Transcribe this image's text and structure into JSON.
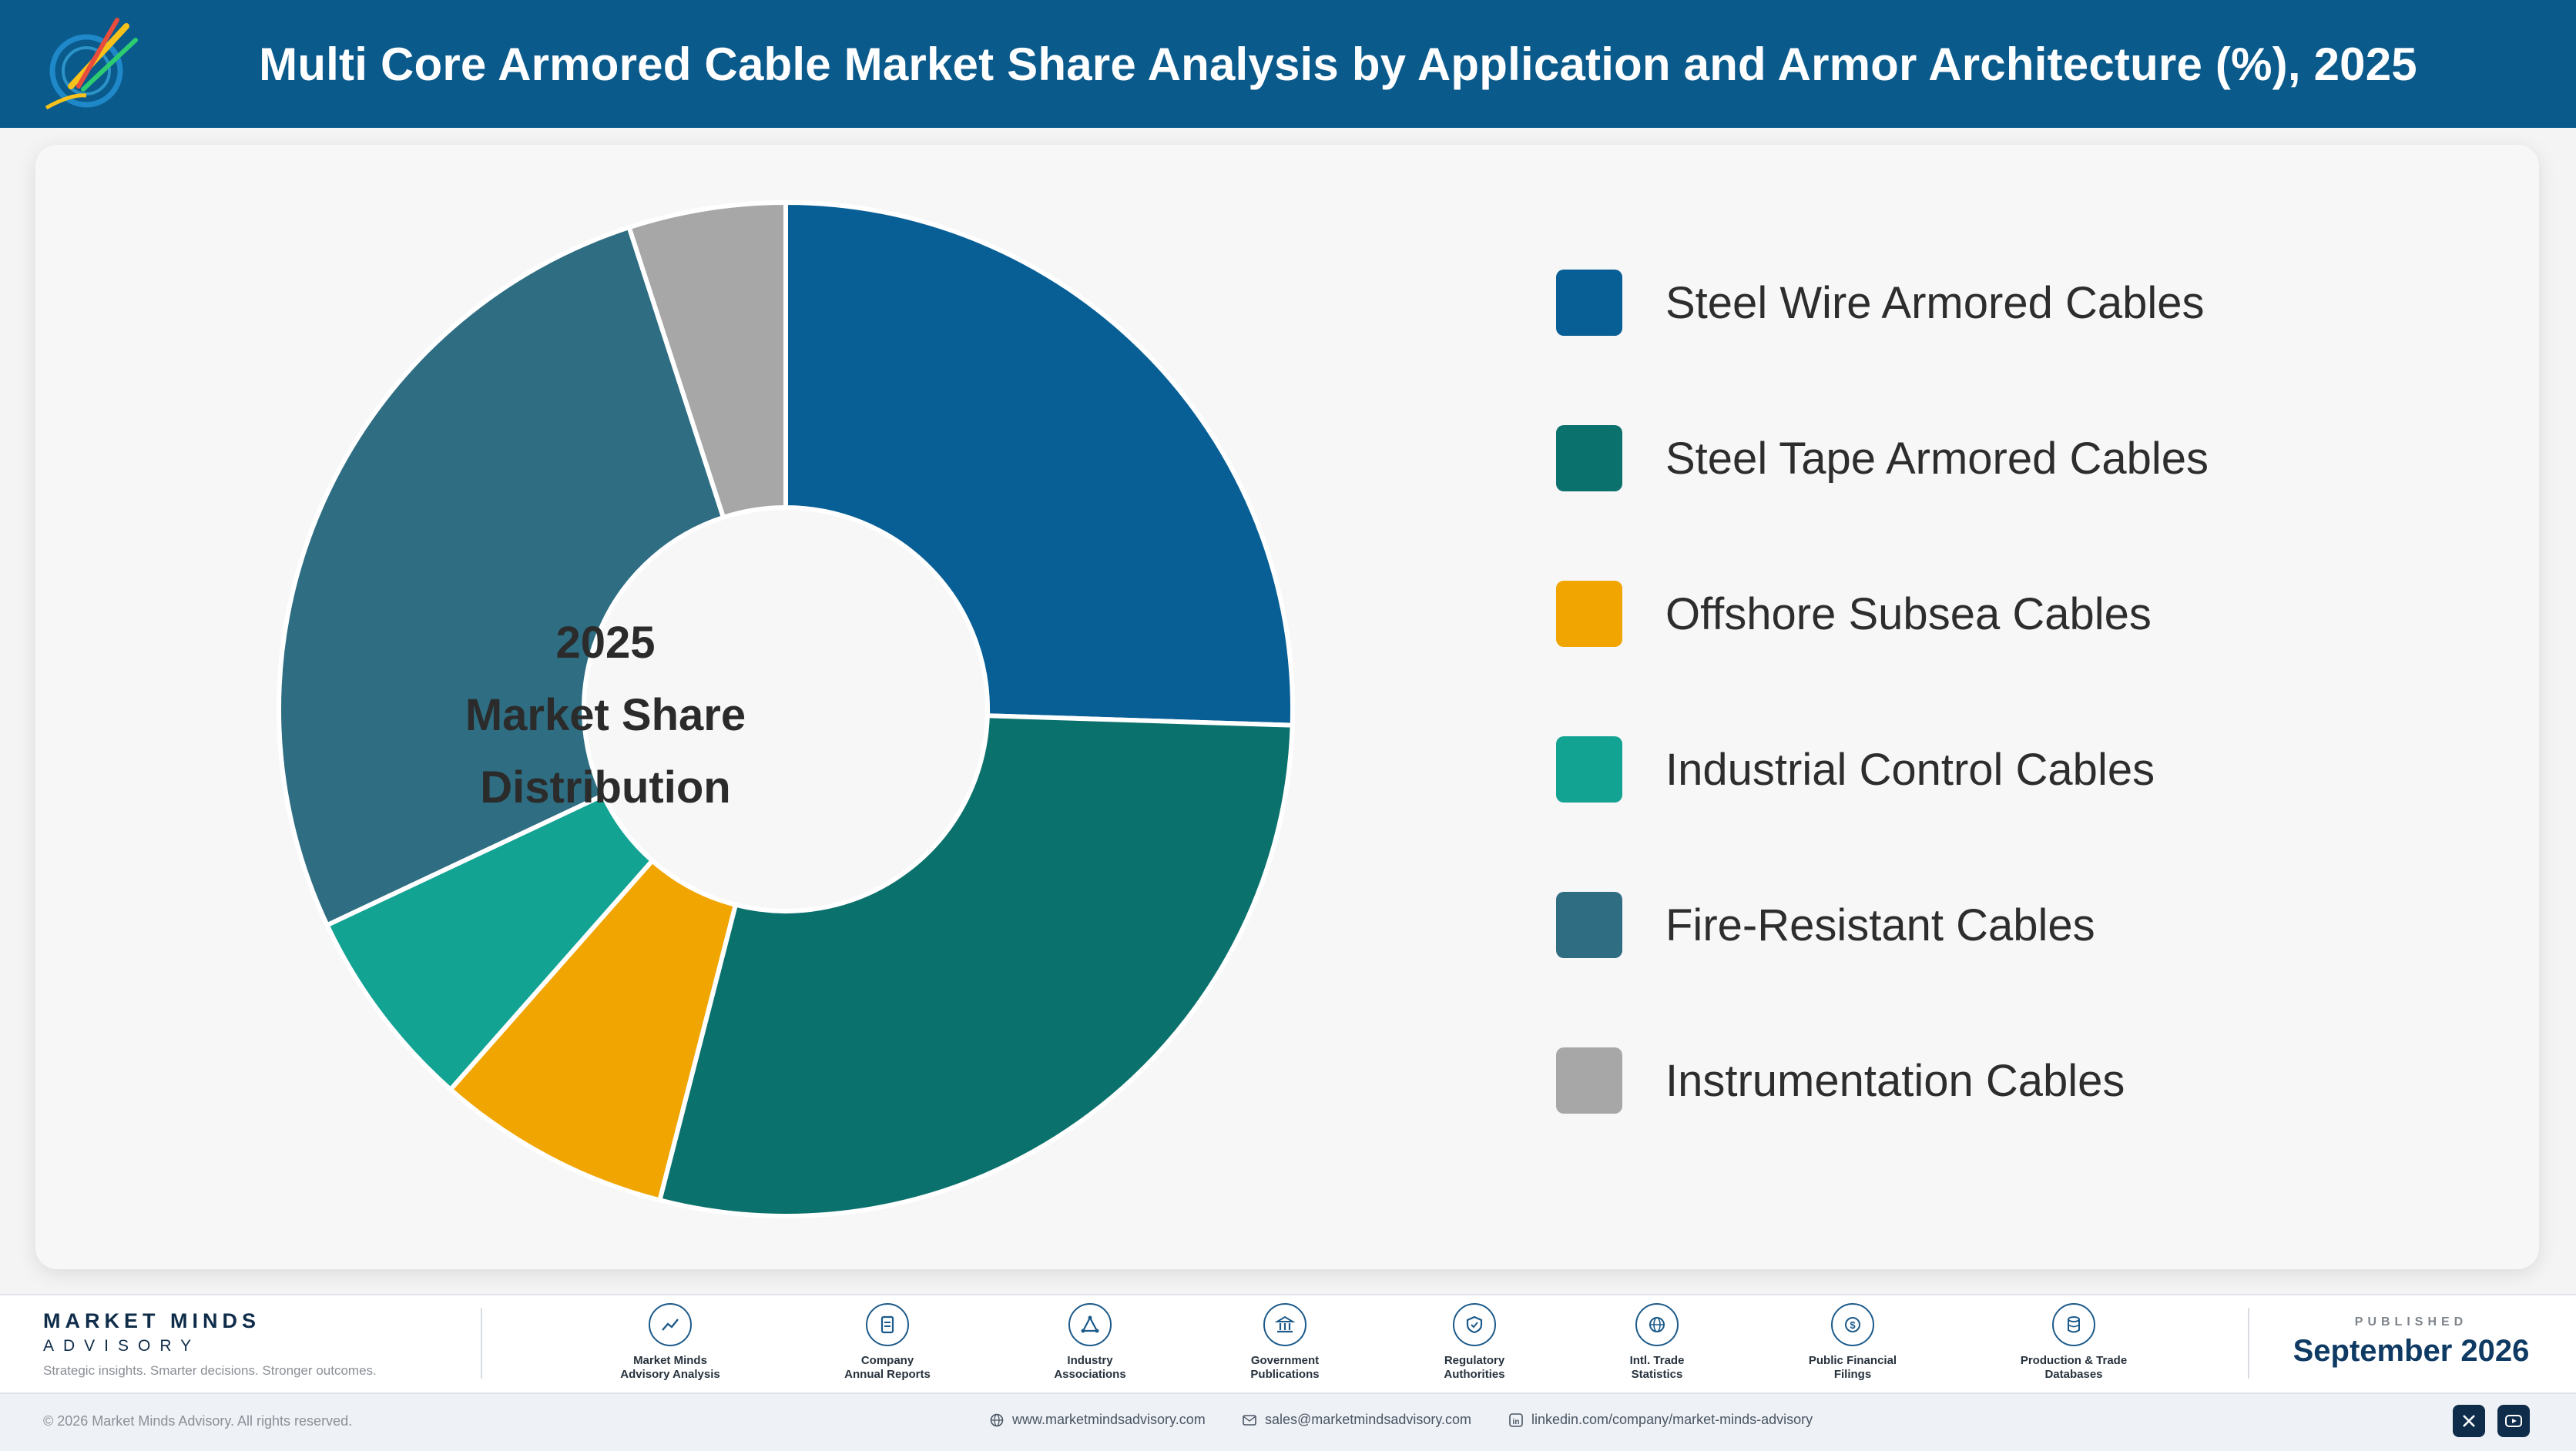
{
  "header": {
    "title": "Multi Core Armored Cable Market Share Analysis by Application and Armor Architecture (%), 2025"
  },
  "chart_data": {
    "type": "pie",
    "style": "donut",
    "center_label": [
      "2025",
      "Market Share",
      "Distribution"
    ],
    "legend_position": "right",
    "categories": [
      "Steel Wire Armored Cables",
      "Steel Tape Armored Cables",
      "Offshore Subsea Cables",
      "Industrial Control Cables",
      "Fire-Resistant Cables",
      "Instrumentation Cables"
    ],
    "values": [
      25.5,
      28.5,
      7.5,
      6.5,
      27,
      5
    ],
    "colors": [
      "#075f96",
      "#0b716d",
      "#f0a500",
      "#12a393",
      "#2e6d82",
      "#a7a7a7"
    ]
  },
  "footer": {
    "brand_name": "MARKET MINDS",
    "brand_sub": "ADVISORY",
    "tagline": "Strategic insights. Smarter decisions. Stronger outcomes.",
    "sources": [
      {
        "label": [
          "Market Minds",
          "Advisory Analysis"
        ],
        "icon": "chart-line-icon"
      },
      {
        "label": [
          "Company",
          "Annual Reports"
        ],
        "icon": "document-icon"
      },
      {
        "label": [
          "Industry",
          "Associations"
        ],
        "icon": "network-icon"
      },
      {
        "label": [
          "Government",
          "Publications"
        ],
        "icon": "building-icon"
      },
      {
        "label": [
          "Regulatory",
          "Authorities"
        ],
        "icon": "shield-icon"
      },
      {
        "label": [
          "Intl. Trade",
          "Statistics"
        ],
        "icon": "globe-icon"
      },
      {
        "label": [
          "Public Financial",
          "Filings"
        ],
        "icon": "dollar-icon"
      },
      {
        "label": [
          "Production & Trade",
          "Databases"
        ],
        "icon": "database-icon"
      }
    ],
    "published_label": "PUBLISHED",
    "published_date": "September 2026"
  },
  "bottom": {
    "copyright": "© 2026 Market Minds Advisory. All rights reserved.",
    "website": "www.marketmindsadvisory.com",
    "email": "sales@marketmindsadvisory.com",
    "linkedin": "linkedin.com/company/market-minds-advisory"
  }
}
